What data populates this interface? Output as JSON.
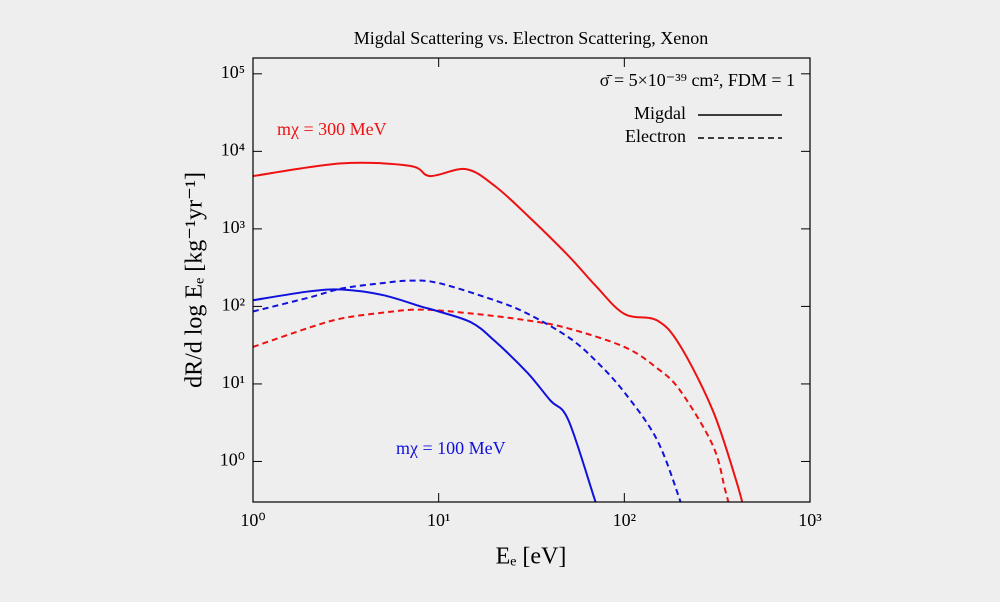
{
  "chart_data": {
    "type": "line",
    "title": "Migdal Scattering vs. Electron Scattering, Xenon",
    "xlabel": "Eₑ [eV]",
    "ylabel": "dR/d log Eₑ  [kg⁻¹yr⁻¹]",
    "xscale": "log",
    "yscale": "log",
    "xlim": [
      1,
      1000
    ],
    "ylim": [
      0.3,
      160000
    ],
    "xticks": [
      {
        "value": 1,
        "label": "10⁰"
      },
      {
        "value": 10,
        "label": "10¹"
      },
      {
        "value": 100,
        "label": "10²"
      },
      {
        "value": 1000,
        "label": "10³"
      }
    ],
    "yticks": [
      {
        "value": 1,
        "label": "10⁰"
      },
      {
        "value": 10,
        "label": "10¹"
      },
      {
        "value": 100,
        "label": "10²"
      },
      {
        "value": 1000,
        "label": "10³"
      },
      {
        "value": 10000,
        "label": "10⁴"
      },
      {
        "value": 100000,
        "label": "10⁵"
      }
    ],
    "legend": "upper right",
    "legend_color": "#000000",
    "annotations": [
      {
        "text": "σ̄ = 5×10⁻³⁹ cm²,  FDM = 1",
        "color": "#000000"
      },
      {
        "text": "mχ = 300 MeV",
        "color": "#ee1111"
      },
      {
        "text": "mχ = 100 MeV",
        "color": "#1111dd"
      }
    ],
    "series": [
      {
        "name": "Migdal",
        "color": "#ee1111",
        "linestyle": "solid",
        "x": [
          1,
          3,
          7,
          9,
          14,
          20,
          30,
          50,
          70,
          100,
          150,
          200,
          300,
          400,
          450
        ],
        "values": [
          4800,
          7000,
          6500,
          4800,
          5900,
          3600,
          1500,
          450,
          185,
          80,
          66,
          31,
          4.5,
          0.57,
          0.2
        ]
      },
      {
        "name": "Electron",
        "color": "#ee1111",
        "linestyle": "dashed",
        "x": [
          1,
          2,
          3,
          5,
          8,
          15,
          30,
          50,
          100,
          150,
          200,
          300,
          350,
          380
        ],
        "values": [
          30,
          53,
          70,
          83,
          91,
          81,
          66,
          52,
          30,
          16,
          8.2,
          1.6,
          0.42,
          0.2
        ]
      },
      {
        "name": "Migdal",
        "color": "#1111dd",
        "linestyle": "solid",
        "x": [
          1,
          2,
          3,
          5,
          8,
          10,
          15,
          20,
          30,
          40,
          50,
          70,
          75
        ],
        "values": [
          120,
          156,
          165,
          140,
          100,
          86,
          62,
          36,
          14,
          6.1,
          3.4,
          0.3,
          0.2
        ]
      },
      {
        "name": "Electron",
        "color": "#1111dd",
        "linestyle": "dashed",
        "x": [
          1,
          2,
          3,
          5,
          7,
          10,
          20,
          30,
          50,
          70,
          100,
          150,
          200,
          210
        ],
        "values": [
          86,
          130,
          170,
          200,
          215,
          200,
          120,
          81,
          40,
          20,
          7.8,
          1.9,
          0.31,
          0.2
        ]
      }
    ]
  }
}
